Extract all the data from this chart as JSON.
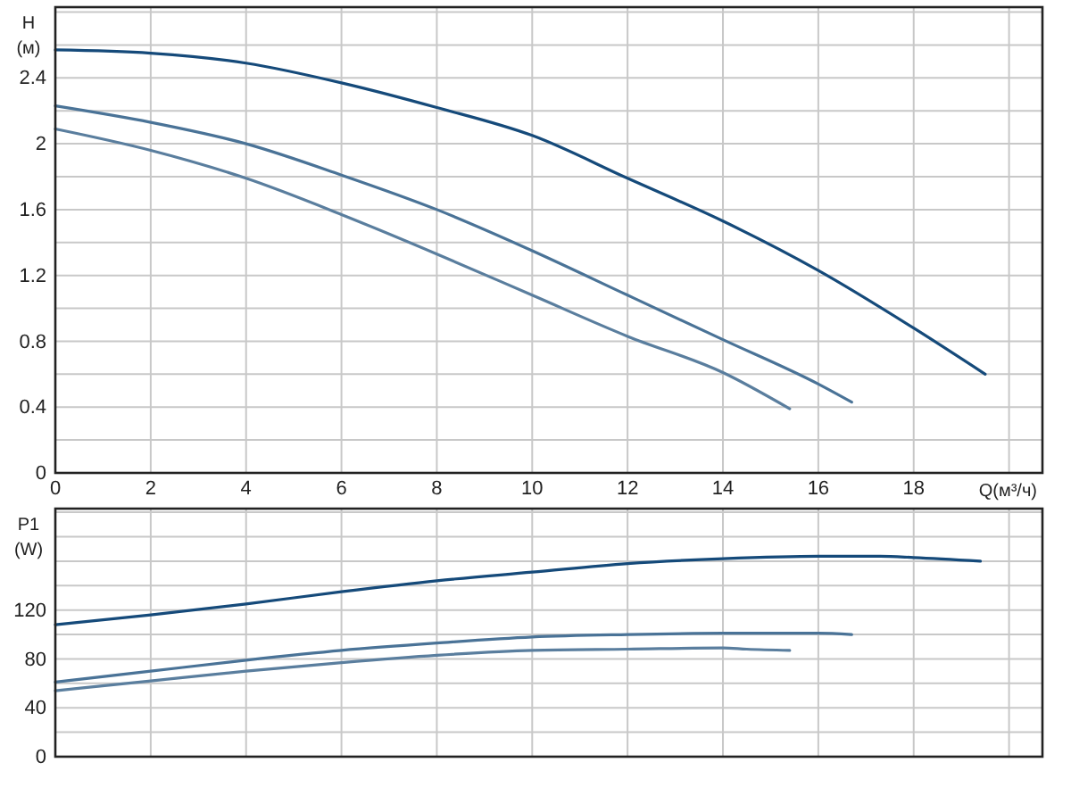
{
  "chart_data": [
    {
      "type": "line",
      "xlabel": "Q(м³/ч)",
      "ylabel": "H (м)",
      "xlim": [
        0,
        20.7
      ],
      "ylim": [
        0,
        2.83
      ],
      "grid": true,
      "tick_labels": true,
      "line_style": "solid",
      "marker": "none",
      "xticks": [
        0,
        2,
        4,
        6,
        8,
        10,
        12,
        14,
        16,
        18,
        {
          "value": 20,
          "label": null
        }
      ],
      "yticks": [
        0,
        {
          "value": 0.2,
          "label": null
        },
        0.4,
        {
          "value": 0.6,
          "label": null
        },
        0.8,
        {
          "value": 1.0,
          "label": null
        },
        1.2,
        {
          "value": 1.4,
          "label": null
        },
        1.6,
        {
          "value": 1.8,
          "label": null
        },
        2,
        {
          "value": 2.2,
          "label": null
        },
        2.4,
        {
          "value": 2.6,
          "label": null
        },
        {
          "value": 2.8,
          "label": null
        }
      ],
      "series": [
        {
          "color": "#154a7a",
          "x": [
            0,
            2,
            4,
            6,
            8,
            10,
            12,
            14,
            16,
            18,
            19.5
          ],
          "values": [
            2.57,
            2.55,
            2.49,
            2.37,
            2.22,
            2.05,
            1.79,
            1.53,
            1.23,
            0.88,
            0.6
          ]
        },
        {
          "color": "#4a7397",
          "x": [
            0,
            2,
            4,
            6,
            8,
            10,
            12,
            14,
            16,
            16.7
          ],
          "values": [
            2.23,
            2.13,
            2.0,
            1.81,
            1.6,
            1.35,
            1.08,
            0.81,
            0.54,
            0.43
          ]
        },
        {
          "color": "#5a7e9e",
          "x": [
            0,
            2,
            4,
            6,
            8,
            10,
            12,
            14,
            15.4
          ],
          "values": [
            2.09,
            1.96,
            1.79,
            1.57,
            1.33,
            1.08,
            0.83,
            0.61,
            0.39
          ]
        }
      ]
    },
    {
      "type": "line",
      "ylabel": "P1 (W)",
      "xlim": [
        0,
        20.7
      ],
      "ylim": [
        0,
        203
      ],
      "grid": true,
      "tick_labels": "y",
      "line_style": "solid",
      "marker": "none",
      "xticks": [
        0,
        2,
        4,
        6,
        8,
        10,
        12,
        14,
        16,
        18,
        {
          "value": 20,
          "label": null
        }
      ],
      "yticks": [
        0,
        {
          "value": 20,
          "label": null
        },
        40,
        {
          "value": 60,
          "label": null
        },
        80,
        {
          "value": 100,
          "label": null
        },
        120,
        {
          "value": 140,
          "label": null
        },
        {
          "value": 160,
          "label": null
        },
        {
          "value": 180,
          "label": null
        },
        {
          "value": 200,
          "label": null
        }
      ],
      "series": [
        {
          "color": "#154a7a",
          "x": [
            0,
            2,
            4,
            6,
            8,
            10,
            12,
            14,
            16,
            17.3,
            18,
            19.4
          ],
          "values": [
            108,
            116,
            125,
            135,
            144,
            151,
            158,
            162,
            164,
            164,
            163,
            160
          ]
        },
        {
          "color": "#4a7397",
          "x": [
            0,
            2,
            4,
            6,
            8,
            10,
            12,
            14,
            16,
            16.7
          ],
          "values": [
            61,
            70,
            79,
            87,
            93,
            98,
            100,
            101,
            101,
            100
          ]
        },
        {
          "color": "#5a7e9e",
          "x": [
            0,
            2,
            4,
            6,
            8,
            10,
            12,
            14,
            14.5,
            15.4
          ],
          "values": [
            54,
            62,
            70,
            77,
            83,
            87,
            88,
            89,
            88,
            87
          ]
        }
      ]
    }
  ]
}
